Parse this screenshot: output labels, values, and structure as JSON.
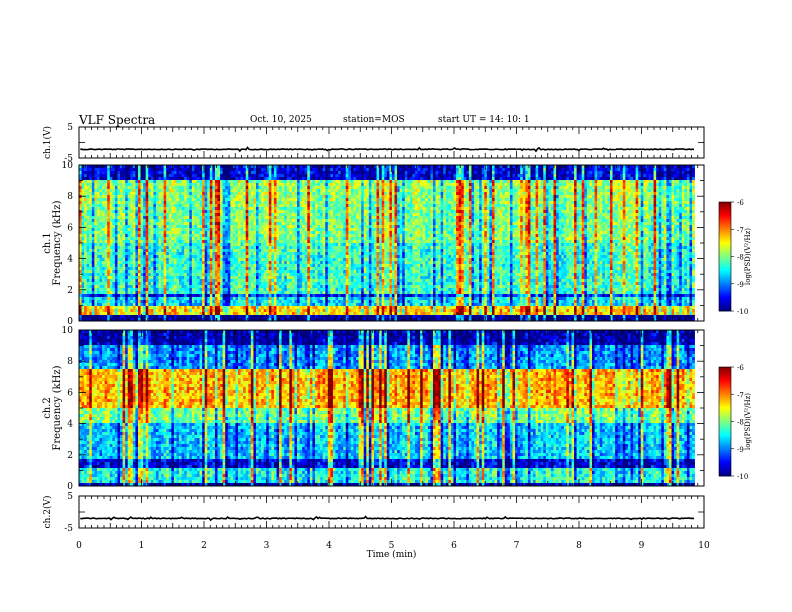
{
  "header": {
    "title": "VLF Spectra",
    "date": "Oct. 10, 2025",
    "station": "station=MOS",
    "start": "start  UT  =   14: 10: 1"
  },
  "chart_data": [
    {
      "type": "line",
      "name": "ch1-waveform",
      "ylabel": "ch.1(V)",
      "ylim": [
        -5,
        5
      ],
      "yticks": [
        "5",
        "-5"
      ],
      "xlim": [
        0,
        10
      ],
      "level": -2.2
    },
    {
      "type": "heatmap",
      "name": "ch1-spectrogram",
      "ylabel_top": "ch.1",
      "ylabel": "Frequency (kHz)",
      "ylim": [
        0,
        10
      ],
      "yticks": [
        "0",
        "2",
        "4",
        "6",
        "8",
        "10"
      ],
      "xlim": [
        0,
        9.85
      ],
      "colorbar": {
        "label": "log(PSD)(V²/Hz)",
        "range": [
          -10,
          -6
        ],
        "ticks": [
          "-6",
          "-7",
          "-8",
          "-9",
          "-10"
        ]
      },
      "bands": [
        {
          "from": 0,
          "to": 0.3,
          "level": -10
        },
        {
          "from": 0.3,
          "to": 1.0,
          "level": -7.3
        },
        {
          "from": 1.0,
          "to": 1.5,
          "level": -8.6
        },
        {
          "from": 1.5,
          "to": 1.7,
          "level": -9.4
        },
        {
          "from": 1.7,
          "to": 5.0,
          "level": -8.3
        },
        {
          "from": 5.0,
          "to": 7.5,
          "level": -8.0
        },
        {
          "from": 7.5,
          "to": 9.0,
          "level": -7.9
        },
        {
          "from": 9.0,
          "to": 10.0,
          "level": -9.6
        }
      ]
    },
    {
      "type": "heatmap",
      "name": "ch2-spectrogram",
      "ylabel_top": "ch.2",
      "ylabel": "Frequency (kHz)",
      "ylim": [
        0,
        10
      ],
      "yticks": [
        "0",
        "2",
        "4",
        "6",
        "8",
        "10"
      ],
      "xlim": [
        0,
        9.85
      ],
      "colorbar": {
        "label": "log(PSD)(V²/Hz)",
        "range": [
          -10,
          -6
        ],
        "ticks": [
          "-6",
          "-7",
          "-8",
          "-9",
          "-10"
        ]
      },
      "bands": [
        {
          "from": 0,
          "to": 0.2,
          "level": -9.8
        },
        {
          "from": 0.2,
          "to": 1.2,
          "level": -8.4
        },
        {
          "from": 1.2,
          "to": 1.8,
          "level": -9.6
        },
        {
          "from": 1.8,
          "to": 4.0,
          "level": -8.7
        },
        {
          "from": 4.0,
          "to": 5.0,
          "level": -8.0
        },
        {
          "from": 5.0,
          "to": 7.5,
          "level": -7.2
        },
        {
          "from": 7.5,
          "to": 9.0,
          "level": -8.9
        },
        {
          "from": 9.0,
          "to": 10.0,
          "level": -9.8
        }
      ]
    },
    {
      "type": "line",
      "name": "ch2-waveform",
      "ylabel": "ch.2(V)",
      "ylim": [
        -5,
        5
      ],
      "yticks": [
        "5",
        "-5"
      ],
      "xlim": [
        0,
        10
      ],
      "level": -2.0
    }
  ],
  "xaxis": {
    "label": "Time (min)",
    "ticks": [
      "0",
      "1",
      "2",
      "3",
      "4",
      "5",
      "6",
      "7",
      "8",
      "9",
      "10"
    ],
    "range": [
      0,
      10
    ]
  }
}
